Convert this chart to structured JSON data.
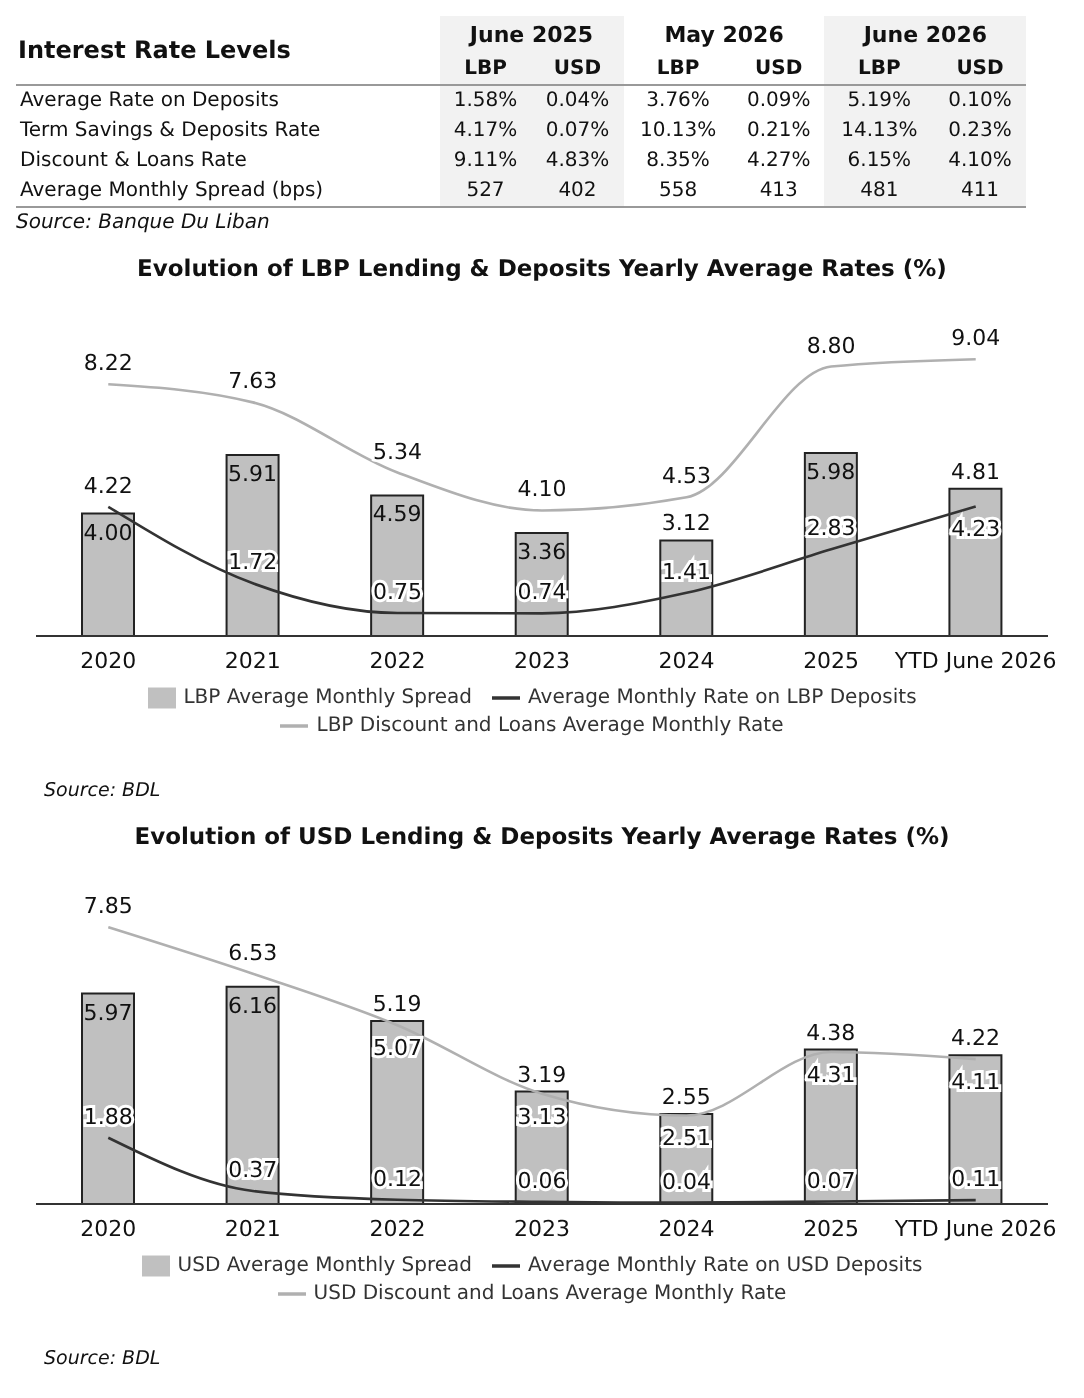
{
  "chart_data": [
    {
      "type": "other",
      "title": "Interest Rate Levels",
      "categories": [
        "LBP",
        "USD",
        "LBP",
        "USD",
        "LBP",
        "USD"
      ],
      "annotations": [
        "June 2025",
        "May 2026",
        "June 2026",
        "Source: Banque Du Liban"
      ],
      "y_categories": [
        "Average Rate on Deposits",
        "Term Savings & Deposits Rate",
        "Discount & Loans Rate",
        "Average Monthly Spread (bps)"
      ],
      "cell_labels": [
        [
          "1.58%",
          "0.04%",
          "3.76%",
          "0.09%",
          "5.19%",
          "0.10%"
        ],
        [
          "4.17%",
          "0.07%",
          "10.13%",
          "0.21%",
          "14.13%",
          "0.23%"
        ],
        [
          "9.11%",
          "4.83%",
          "8.35%",
          "4.27%",
          "6.15%",
          "4.10%"
        ],
        [
          "527",
          "402",
          "558",
          "413",
          "481",
          "411"
        ]
      ]
    },
    {
      "type": "bar",
      "title": "Evolution of LBP Lending & Deposits Yearly Average Rates (%)",
      "categories": [
        "2020",
        "2021",
        "2022",
        "2023",
        "2024",
        "2025",
        "YTD June 2026"
      ],
      "series": [
        {
          "name": "LBP Average Monthly Spread",
          "type": "bar",
          "color": "#c0c0c0",
          "values": [
            4.0,
            5.91,
            4.59,
            3.36,
            3.12,
            5.98,
            4.81
          ],
          "value_labels": [
            "4.00",
            "5.91",
            "4.59",
            "3.36",
            "3.12",
            "5.98",
            "4.81"
          ]
        },
        {
          "name": "Average Monthly Rate on LBP Deposits",
          "type": "line",
          "color": "#333333",
          "values": [
            4.22,
            1.72,
            0.75,
            0.74,
            1.41,
            2.83,
            4.23
          ],
          "value_labels": [
            "4.22",
            "1.72",
            "0.75",
            "0.74",
            "1.41",
            "2.83",
            "4.23"
          ]
        },
        {
          "name": "LBP Discount and Loans Average Monthly Rate",
          "type": "line",
          "color": "#b0b0b0",
          "values": [
            8.22,
            7.63,
            5.34,
            4.1,
            4.53,
            8.8,
            9.04
          ],
          "value_labels": [
            "8.22",
            "7.63",
            "5.34",
            "4.10",
            "4.53",
            "8.80",
            "9.04"
          ]
        }
      ],
      "legend": "bottom",
      "marker": "none",
      "grid": false,
      "annotations": [
        "Source: BDL"
      ]
    },
    {
      "type": "bar",
      "title": "Evolution of USD Lending & Deposits Yearly Average Rates (%)",
      "categories": [
        "2020",
        "2021",
        "2022",
        "2023",
        "2024",
        "2025",
        "YTD June 2026"
      ],
      "series": [
        {
          "name": "USD Average Monthly Spread",
          "type": "bar",
          "color": "#c0c0c0",
          "values": [
            5.97,
            6.16,
            5.19,
            3.19,
            2.55,
            4.38,
            4.22
          ],
          "value_labels": [
            "5.97",
            "6.16",
            "5.19",
            "3.19",
            "2.55",
            "4.38",
            "4.22"
          ]
        },
        {
          "name": "Average Monthly Rate on USD Deposits",
          "type": "line",
          "color": "#333333",
          "values": [
            1.88,
            0.37,
            0.12,
            0.06,
            0.04,
            0.07,
            0.11
          ],
          "value_labels": [
            "1.88",
            "0.37",
            "0.12",
            "0.06",
            "0.04",
            "0.07",
            "0.11"
          ]
        },
        {
          "name": "USD Discount and Loans Average Monthly Rate",
          "type": "line",
          "color": "#b0b0b0",
          "values": [
            7.85,
            6.53,
            5.07,
            3.13,
            2.51,
            4.31,
            4.11
          ],
          "value_labels": [
            "7.85",
            "6.53",
            "5.07",
            "3.13",
            "2.51",
            "4.31",
            "4.11"
          ]
        }
      ],
      "legend": "bottom",
      "marker": "none",
      "grid": false,
      "annotations": [
        "Source: BDL"
      ]
    }
  ]
}
